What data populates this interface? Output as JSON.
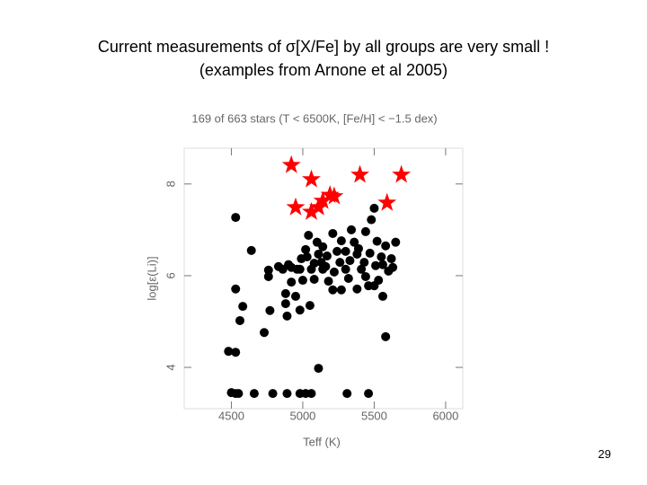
{
  "header": {
    "line1": "Current measurements of σ[X/Fe] by all groups are very small !",
    "line2": "(examples from Arnone et al 2005)"
  },
  "page_number": "29",
  "chart_data": {
    "type": "scatter",
    "title": "169 of 663 stars (T < 6500K, [Fe/H] < −1.5 dex)",
    "x_label": "Teff (K)",
    "y_label": "log[ε(Li)]",
    "xlim": [
      4170,
      6120
    ],
    "ylim": [
      3.1,
      8.78
    ],
    "xticks": [
      4500,
      5000,
      5500,
      6000
    ],
    "yticks": [
      4,
      6,
      8
    ],
    "series": [
      {
        "marker": "circle",
        "color": "#000000",
        "x": [
          4530,
          4640,
          4760,
          4830,
          4530,
          4580,
          4560,
          4480,
          4530,
          4550,
          4660,
          4790,
          4890,
          4980,
          5020,
          5060,
          5310,
          5460,
          4500,
          4730,
          4770,
          4890,
          4880,
          4920,
          4950,
          4980,
          4990,
          5020,
          5040,
          5060,
          5080,
          5100,
          5110,
          5130,
          5140,
          5160,
          5180,
          5210,
          5240,
          5260,
          5270,
          5300,
          5330,
          5360,
          5380,
          5390,
          5410,
          5430,
          5440,
          5460,
          5480,
          5500,
          5520,
          5550,
          5560,
          5580,
          5600,
          5620,
          5630,
          5340,
          5440,
          5500,
          5560,
          5580,
          5110,
          4530,
          5210,
          5270,
          5050,
          4980,
          4760,
          4860,
          4880,
          4900,
          5170,
          5320,
          5380,
          5470,
          5510,
          5530,
          5650,
          5300,
          5220,
          5140,
          5080,
          5030,
          5000,
          4960,
          4920
        ],
        "y": [
          7.27,
          6.55,
          6.12,
          6.2,
          5.71,
          5.33,
          5.02,
          4.35,
          3.43,
          3.43,
          3.43,
          3.43,
          3.43,
          3.43,
          3.43,
          3.43,
          3.43,
          3.43,
          3.45,
          4.76,
          5.24,
          5.12,
          5.61,
          5.86,
          5.55,
          6.14,
          6.37,
          6.57,
          6.88,
          6.14,
          5.92,
          6.73,
          6.47,
          6.29,
          6.14,
          6.2,
          5.88,
          5.69,
          6.53,
          6.29,
          6.76,
          6.14,
          6.33,
          6.73,
          6.47,
          6.59,
          6.14,
          6.29,
          5.98,
          5.78,
          7.22,
          7.47,
          6.75,
          6.41,
          6.24,
          6.65,
          6.1,
          6.37,
          6.18,
          7.0,
          6.96,
          5.78,
          5.55,
          4.67,
          3.98,
          4.33,
          6.92,
          5.69,
          5.35,
          5.25,
          5.98,
          6.14,
          5.39,
          6.24,
          6.43,
          5.94,
          5.71,
          6.49,
          6.22,
          5.9,
          6.73,
          6.53,
          6.08,
          6.63,
          6.27,
          6.41,
          5.9,
          6.14,
          6.18
        ]
      },
      {
        "marker": "star",
        "color": "#ff0000",
        "x": [
          4920,
          5060,
          5400,
          5690,
          5190,
          5140,
          4950,
          5060,
          5110,
          5590,
          5220
        ],
        "y": [
          8.41,
          8.1,
          8.2,
          8.2,
          7.76,
          7.63,
          7.49,
          7.39,
          7.49,
          7.59,
          7.73
        ]
      }
    ]
  }
}
